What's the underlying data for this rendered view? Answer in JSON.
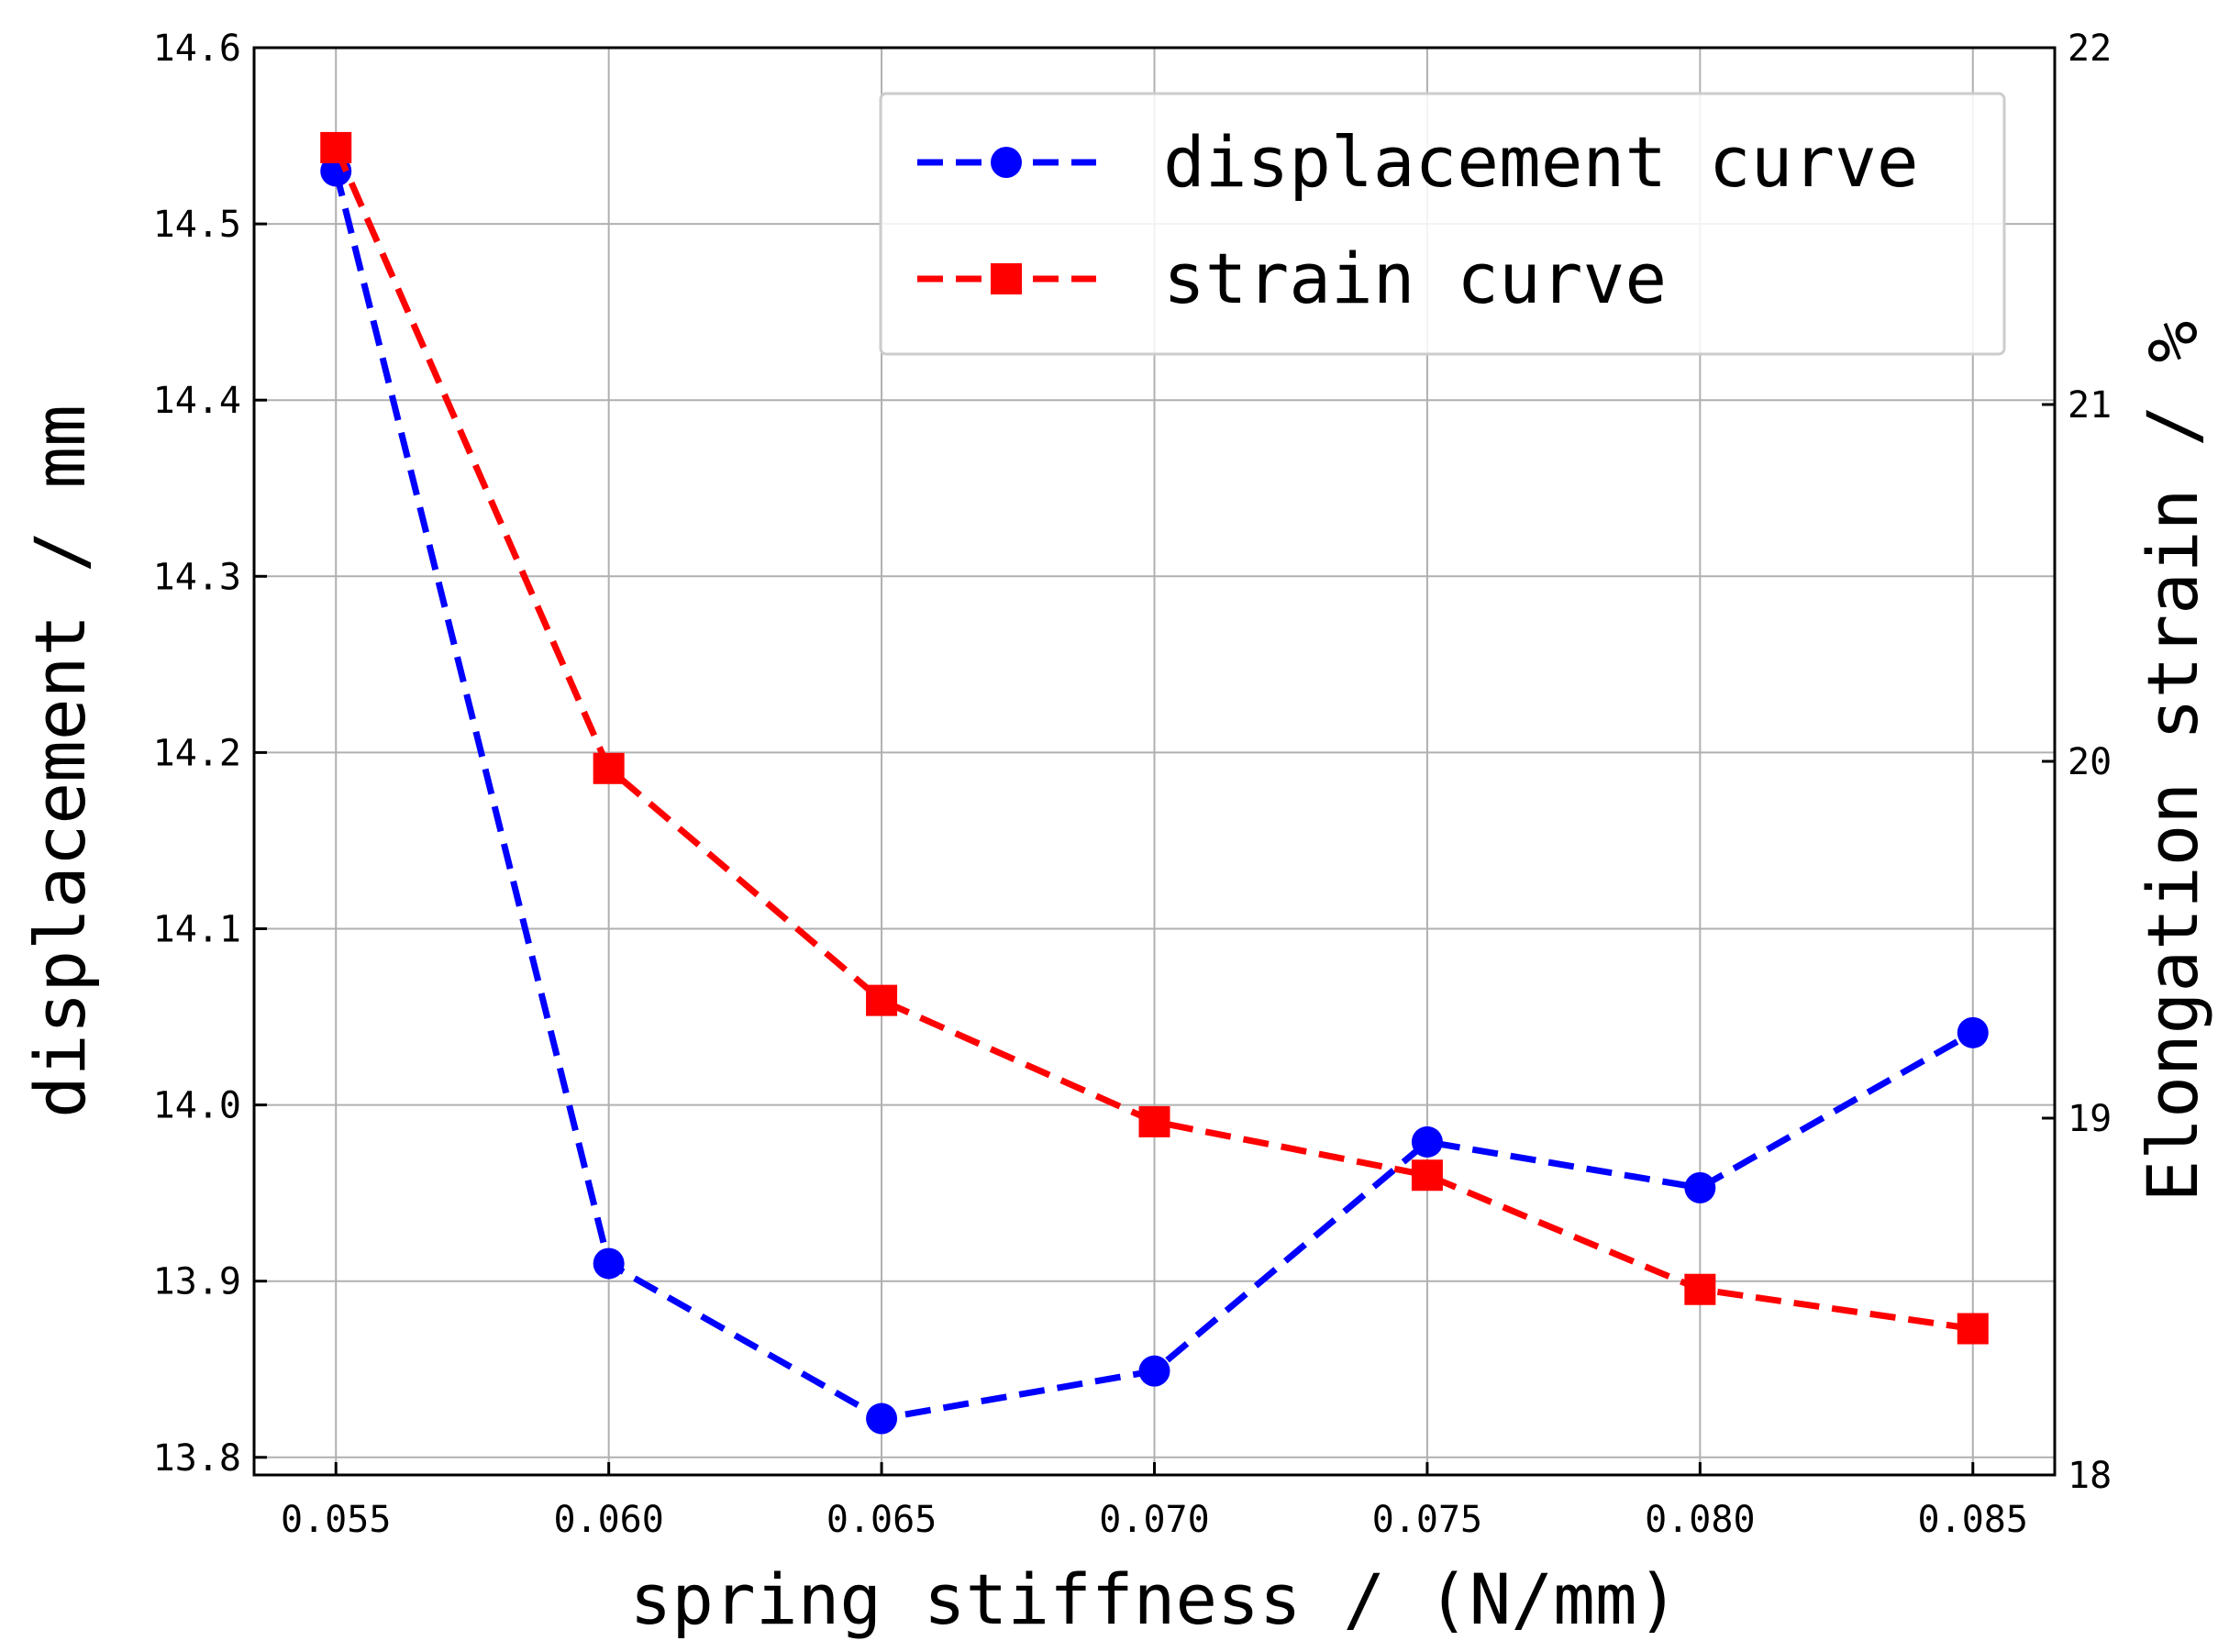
{
  "chart_data": {
    "type": "line",
    "xlabel": "spring stiffness / (N/mm)",
    "ylabel_left": "displacement / mm",
    "ylabel_right": "Elongation strain / %",
    "x": [
      0.055,
      0.06,
      0.065,
      0.07,
      0.075,
      0.08,
      0.085
    ],
    "x_tick_labels": [
      "0.055",
      "0.060",
      "0.065",
      "0.070",
      "0.075",
      "0.080",
      "0.085"
    ],
    "xlim": [
      0.0535,
      0.0865
    ],
    "ylim_left": [
      13.79,
      14.6
    ],
    "y_left_ticks": [
      13.8,
      13.9,
      14.0,
      14.1,
      14.2,
      14.3,
      14.4,
      14.5,
      14.6
    ],
    "y_left_tick_labels": [
      "13.8",
      "13.9",
      "14.0",
      "14.1",
      "14.2",
      "14.3",
      "14.4",
      "14.5",
      "14.6"
    ],
    "ylim_right": [
      18,
      22
    ],
    "y_right_ticks": [
      18,
      19,
      20,
      21,
      22
    ],
    "y_right_tick_labels": [
      "18",
      "19",
      "20",
      "21",
      "22"
    ],
    "grid": true,
    "legend_position": "top-right",
    "series": [
      {
        "name": "displacement curve",
        "axis": "left",
        "color": "#0000ff",
        "marker": "circle",
        "linestyle": "dashed",
        "values": [
          14.53,
          13.91,
          13.822,
          13.849,
          13.979,
          13.953,
          14.041
        ]
      },
      {
        "name": "strain curve",
        "axis": "right",
        "color": "#ff0000",
        "marker": "square",
        "linestyle": "dashed",
        "values": [
          21.72,
          19.98,
          19.33,
          18.99,
          18.84,
          18.52,
          18.41
        ]
      }
    ]
  }
}
